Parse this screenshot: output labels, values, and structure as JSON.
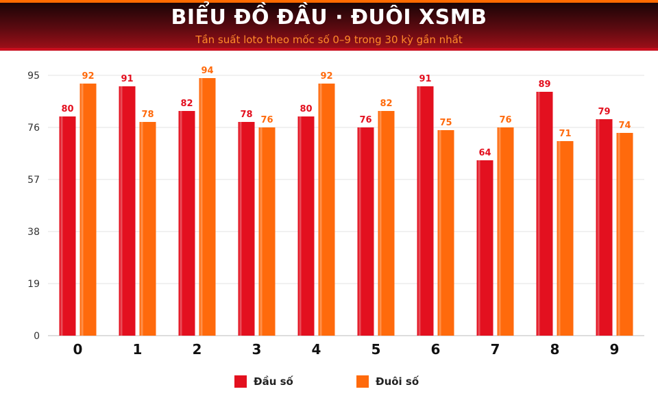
{
  "header": {
    "title": "BIỂU ĐỒ ĐẦU · ĐUÔI XSMB",
    "subtitle": "Tần suất loto theo mốc số 0–9 trong 30 kỳ gần nhất"
  },
  "colors": {
    "dau": "#e3101f",
    "duoi": "#ff6a0c",
    "header_dark": "#1a0406",
    "accent_line": "#c80f1e"
  },
  "legend": [
    {
      "label": "Đầu số",
      "color": "#e3101f"
    },
    {
      "label": "Đuôi số",
      "color": "#ff6a0c"
    }
  ],
  "chart_data": {
    "type": "bar",
    "categories": [
      "0",
      "1",
      "2",
      "3",
      "4",
      "5",
      "6",
      "7",
      "8",
      "9"
    ],
    "series": [
      {
        "name": "Đầu số",
        "values": [
          80,
          91,
          82,
          78,
          80,
          76,
          91,
          64,
          89,
          79
        ]
      },
      {
        "name": "Đuôi số",
        "values": [
          92,
          78,
          94,
          76,
          92,
          82,
          75,
          76,
          71,
          74
        ]
      }
    ],
    "yticks": [
      0,
      19,
      38,
      57,
      76,
      95
    ],
    "ylim": [
      0,
      95
    ],
    "grid": true,
    "legend_position": "bottom-center"
  }
}
